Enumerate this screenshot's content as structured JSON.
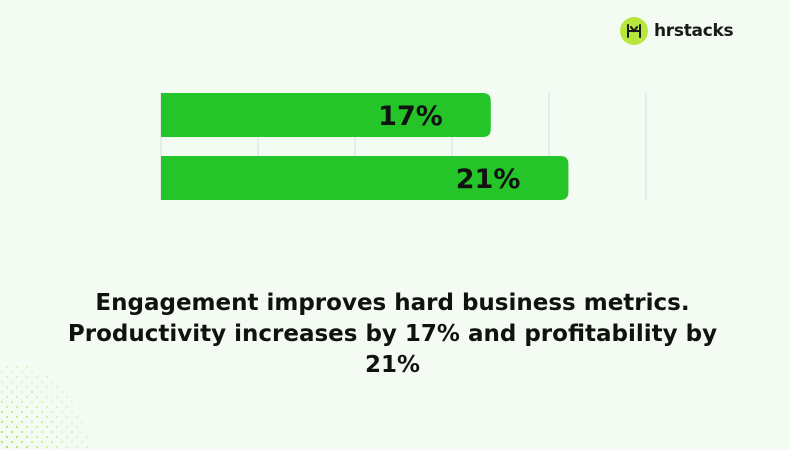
{
  "brand": {
    "name": "hrstacks",
    "mark_color": "#b7e63c",
    "icon": "hr-stacks-logo-icon"
  },
  "chart_data": {
    "type": "bar",
    "orientation": "horizontal",
    "categories": [
      "",
      ""
    ],
    "values": [
      17,
      21
    ],
    "data_labels": [
      "17%",
      "21%"
    ],
    "xlim": [
      0,
      25
    ],
    "grid": true,
    "bar_color": "#25c529",
    "title": "",
    "xlabel": "",
    "ylabel": ""
  },
  "caption": "Engagement improves hard business metrics. Productivity increases by 17% and profitability by 21%"
}
